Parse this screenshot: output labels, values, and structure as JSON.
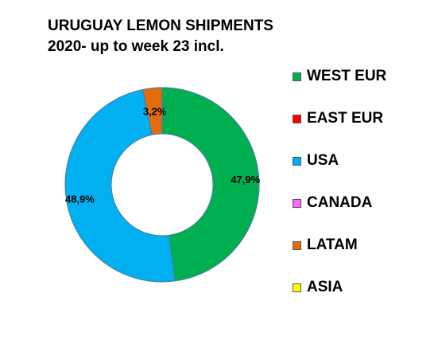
{
  "chart_data": {
    "type": "pie",
    "title_lines": [
      "URUGUAY LEMON SHIPMENTS",
      "2020- up to week 23 incl."
    ],
    "donut": true,
    "slices": [
      {
        "label": "WEST EUR",
        "value": 47.9,
        "display": "47,9%",
        "color": "#00b050"
      },
      {
        "label": "EAST EUR",
        "value": 0,
        "display": "",
        "color": "#ff0000"
      },
      {
        "label": "USA",
        "value": 48.9,
        "display": "48,9%",
        "color": "#00b0f0"
      },
      {
        "label": "CANADA",
        "value": 0,
        "display": "",
        "color": "#ff66ff"
      },
      {
        "label": "LATAM",
        "value": 3.2,
        "display": "3,2%",
        "color": "#e46c0a"
      },
      {
        "label": "ASIA",
        "value": 0,
        "display": "",
        "color": "#ffff00"
      }
    ],
    "legend_position": "right"
  }
}
